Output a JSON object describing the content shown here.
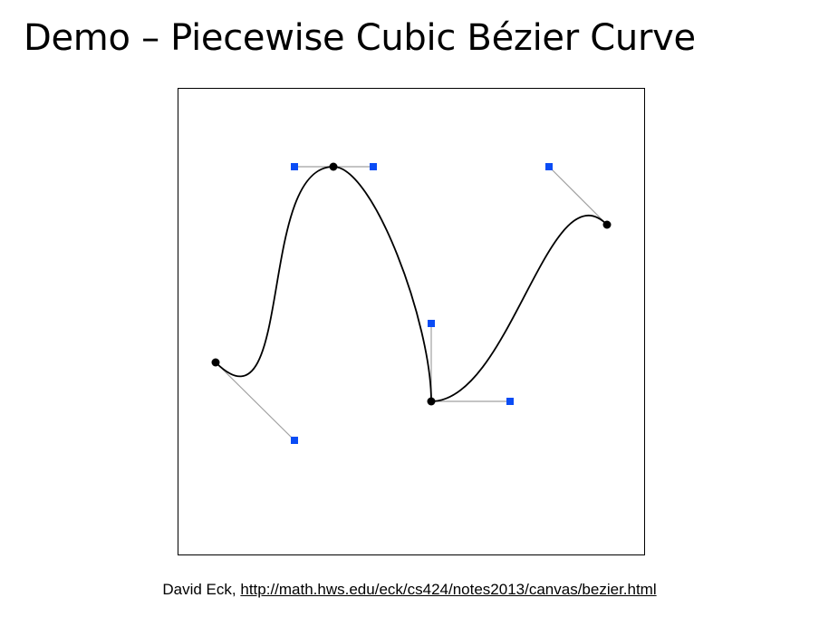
{
  "title": "Demo – Piecewise Cubic Bézier Curve",
  "credit": {
    "author": "David Eck,",
    "link_text": "http://math.hws.edu/eck/cs424/notes2013/canvas/bezier.html"
  },
  "colors": {
    "curve": "#000000",
    "anchor_point": "#000000",
    "control_point": "#0a4cf5",
    "control_line": "#a0a0a0",
    "frame_border": "#000000"
  }
}
